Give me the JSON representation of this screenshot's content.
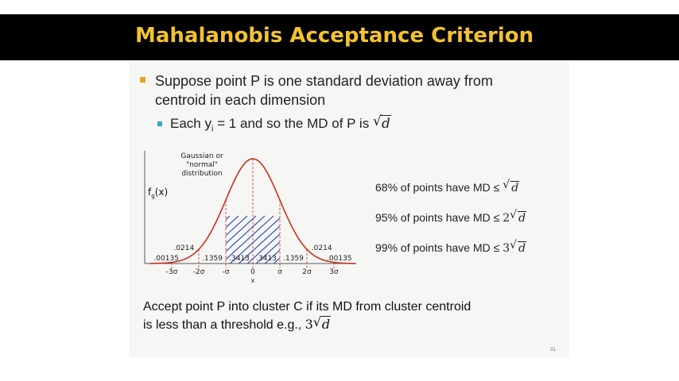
{
  "title": "Mahalanobis Acceptance Criterion",
  "bullets": {
    "main": "Suppose point P is one standard deviation away from centroid in each dimension",
    "sub_prefix": "Each y",
    "sub_subscript": "i",
    "sub_suffix": " = 1 and so the MD of P is ",
    "sub_math": "d"
  },
  "chart_data": {
    "type": "area",
    "title": "Gaussian or \"normal\" distribution",
    "title_lines": [
      "Gaussian or",
      "\"normal\"",
      "distribution"
    ],
    "ylabel": "f",
    "ylabel_sub": "g",
    "ylabel_suffix": "(x)",
    "xlabel": "x",
    "x_ticks": [
      "-3σ",
      "-2σ",
      "-σ",
      "0",
      "σ",
      "2σ",
      "3σ"
    ],
    "regions": [
      {
        "from": "-∞",
        "to": "-3σ",
        "value": ".00135"
      },
      {
        "from": "-3σ",
        "to": "-2σ",
        "value": ".0214"
      },
      {
        "from": "-2σ",
        "to": "-σ",
        "value": ".1359"
      },
      {
        "from": "-σ",
        "to": "0",
        "value": ".3413"
      },
      {
        "from": "0",
        "to": "σ",
        "value": ".3413"
      },
      {
        "from": "σ",
        "to": "2σ",
        "value": ".1359"
      },
      {
        "from": "2σ",
        "to": "3σ",
        "value": ".0214"
      },
      {
        "from": "3σ",
        "to": "∞",
        "value": ".00135"
      }
    ],
    "shaded_range": [
      "-σ",
      "σ"
    ],
    "curve_color": "#c8321e",
    "hatch_color": "#1f3fbf"
  },
  "stats": [
    {
      "text": "68% of points have MD ",
      "math_coef": "",
      "math": "d"
    },
    {
      "text": "95% of points have MD ",
      "math_coef": "2",
      "math": "d"
    },
    {
      "text": "99% of points have MD ",
      "math_coef": "3",
      "math": "d"
    }
  ],
  "leq": "≤",
  "radical": "√",
  "accept": {
    "line1": "Accept point P into cluster C if its MD from cluster centroid",
    "line2": "is less than a threshold e.g., ",
    "math_coef": "3",
    "math": "d"
  },
  "slide_number": "31",
  "colors": {
    "title": "#f2c230",
    "bullet_main": "#e5a41d",
    "bullet_sub": "#3aa5c8"
  }
}
